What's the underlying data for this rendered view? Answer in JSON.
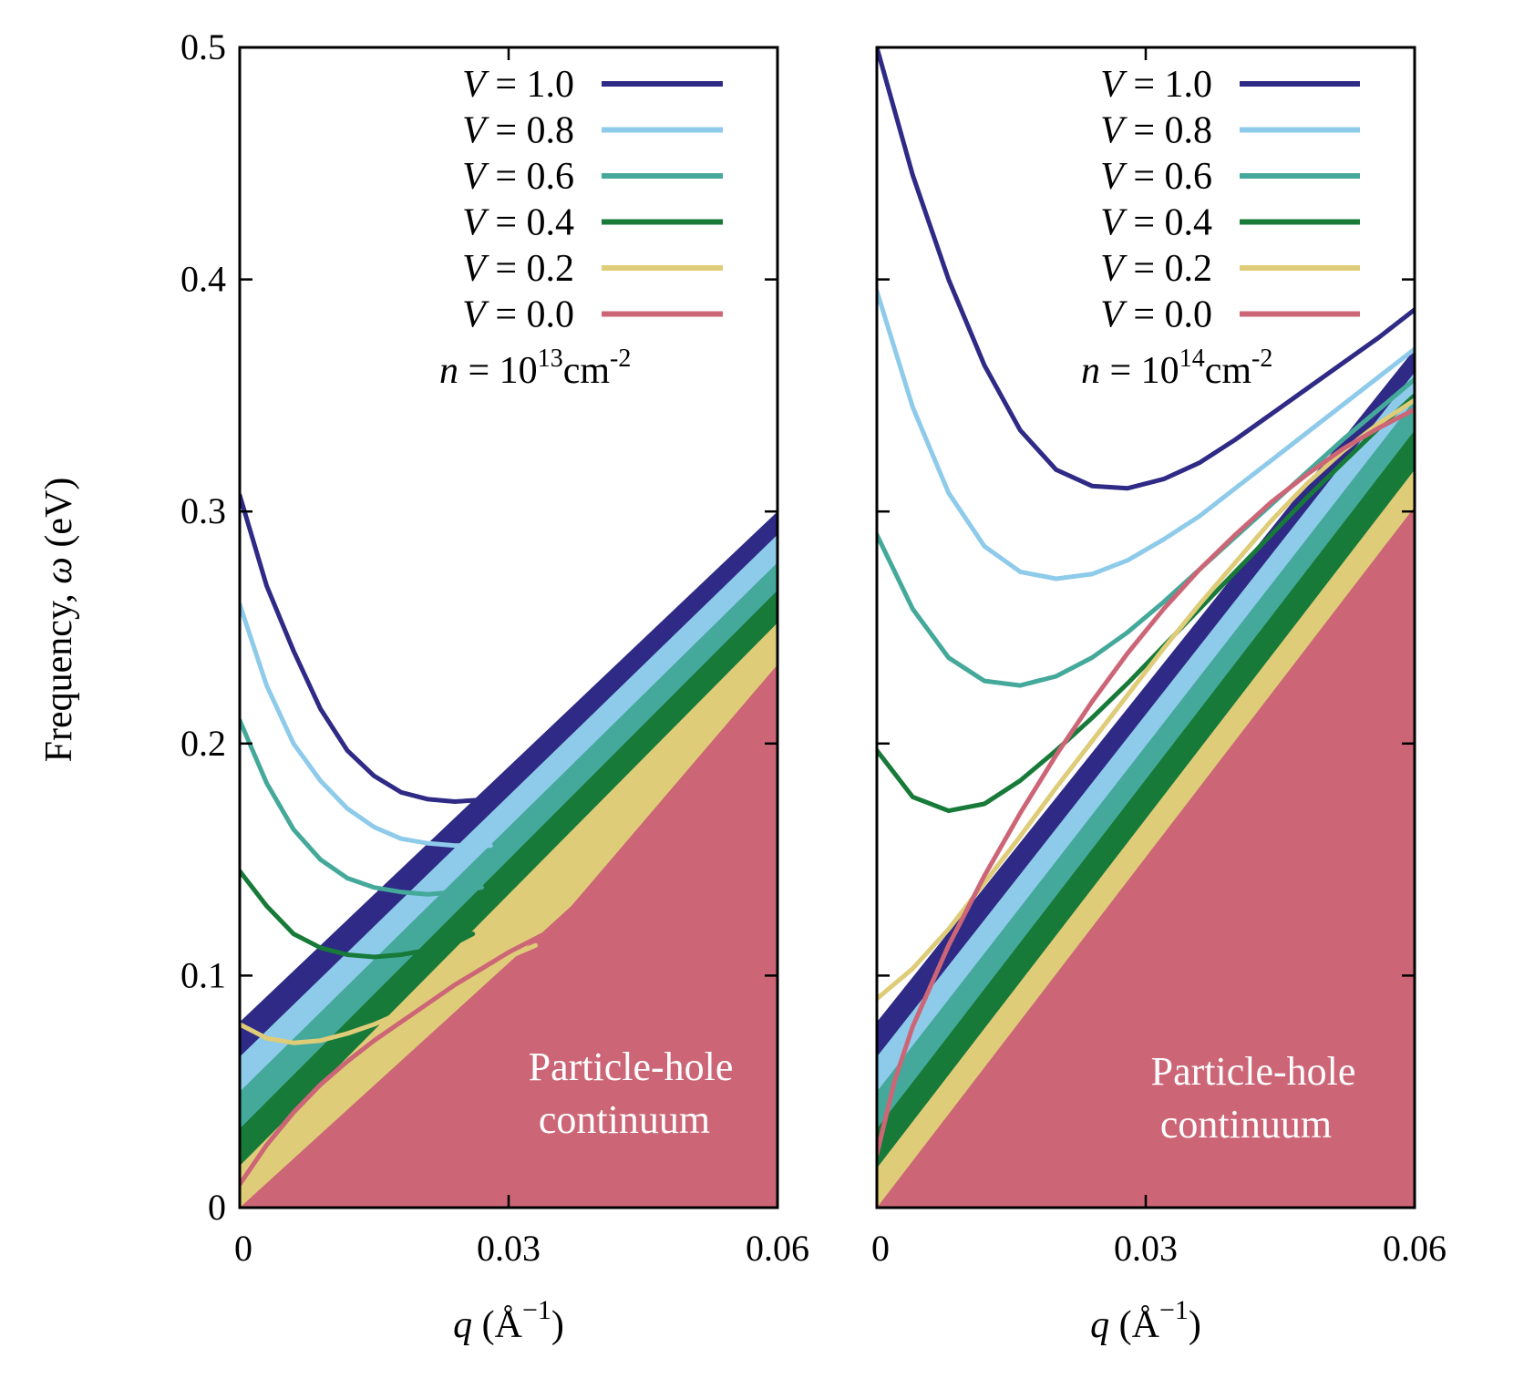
{
  "figure": {
    "ylabel_prefix": "Frequency, ",
    "ylabel_symbol": "ω",
    "ylabel_unit": " (eV)",
    "xlabel_symbol": "q",
    "xlabel_unit_open": " (",
    "xlabel_unit": "Å",
    "xlabel_exp": "−1",
    "xlabel_unit_close": ")",
    "continuum_label_line1": "Particle-hole",
    "continuum_label_line2": "continuum"
  },
  "colors": {
    "V=1.0": "#2e2a85",
    "V=0.8": "#8ecbea",
    "V=0.6": "#44a99a",
    "V=0.4": "#177a39",
    "V=0.2": "#dfcc78",
    "V=0.0": "#cc6677"
  },
  "chart_data": [
    {
      "type": "line",
      "panel": "left",
      "density_label": {
        "prefix": "n",
        "eq": " = 10",
        "exp": "13",
        "unit": "cm",
        "unit_exp": "-2"
      },
      "xlim": [
        0,
        0.06
      ],
      "ylim": [
        0,
        0.5
      ],
      "xticks": [
        "0",
        "0.03",
        "0.06"
      ],
      "yticks": [
        "0",
        "0.1",
        "0.2",
        "0.3",
        "0.4",
        "0.5"
      ],
      "legend_position": "top-right",
      "series": [
        {
          "name": "V = 1.0",
          "x": [
            0,
            0.003,
            0.006,
            0.009,
            0.012,
            0.015,
            0.018,
            0.021,
            0.024,
            0.028
          ],
          "y": [
            0.307,
            0.268,
            0.24,
            0.215,
            0.197,
            0.186,
            0.179,
            0.176,
            0.175,
            0.176
          ]
        },
        {
          "name": "V = 0.8",
          "x": [
            0,
            0.003,
            0.006,
            0.009,
            0.012,
            0.015,
            0.018,
            0.021,
            0.024,
            0.028
          ],
          "y": [
            0.26,
            0.225,
            0.2,
            0.184,
            0.172,
            0.164,
            0.159,
            0.157,
            0.156,
            0.156
          ]
        },
        {
          "name": "V = 0.6",
          "x": [
            0,
            0.003,
            0.006,
            0.009,
            0.012,
            0.015,
            0.018,
            0.021,
            0.024,
            0.027
          ],
          "y": [
            0.21,
            0.183,
            0.163,
            0.15,
            0.142,
            0.138,
            0.136,
            0.135,
            0.136,
            0.138
          ]
        },
        {
          "name": "V = 0.4",
          "x": [
            0,
            0.003,
            0.006,
            0.009,
            0.012,
            0.015,
            0.018,
            0.021,
            0.024,
            0.026
          ],
          "y": [
            0.145,
            0.13,
            0.118,
            0.112,
            0.109,
            0.108,
            0.109,
            0.111,
            0.114,
            0.118
          ]
        },
        {
          "name": "V = 0.2",
          "x": [
            0,
            0.003,
            0.006,
            0.009,
            0.012,
            0.015,
            0.018,
            0.021,
            0.024,
            0.027,
            0.03,
            0.033
          ],
          "y": [
            0.079,
            0.073,
            0.071,
            0.072,
            0.075,
            0.079,
            0.084,
            0.09,
            0.096,
            0.102,
            0.108,
            0.113
          ]
        },
        {
          "name": "V = 0.0",
          "x": [
            0,
            0.003,
            0.006,
            0.009,
            0.012,
            0.015,
            0.018,
            0.021,
            0.024,
            0.027,
            0.03,
            0.033,
            0.035
          ],
          "y": [
            0.01,
            0.027,
            0.041,
            0.053,
            0.063,
            0.072,
            0.08,
            0.088,
            0.096,
            0.103,
            0.11,
            0.116,
            0.12
          ]
        }
      ],
      "continuum_bands": [
        {
          "series": "V = 1.0",
          "x": [
            0,
            0.06
          ],
          "y": [
            0.08,
            0.3
          ]
        },
        {
          "series": "V = 0.8",
          "x": [
            0,
            0.06
          ],
          "y": [
            0.065,
            0.29
          ]
        },
        {
          "series": "V = 0.6",
          "x": [
            0,
            0.06
          ],
          "y": [
            0.05,
            0.278
          ]
        },
        {
          "series": "V = 0.4",
          "x": [
            0,
            0.06
          ],
          "y": [
            0.034,
            0.266
          ]
        },
        {
          "series": "V = 0.2",
          "x": [
            0,
            0.06
          ],
          "y": [
            0.018,
            0.252
          ]
        },
        {
          "series": "V = 0.0",
          "x": [
            0,
            0.037,
            0.06
          ],
          "y": [
            0,
            0.13,
            0.234
          ]
        }
      ]
    },
    {
      "type": "line",
      "panel": "right",
      "density_label": {
        "prefix": "n",
        "eq": " = 10",
        "exp": "14",
        "unit": "cm",
        "unit_exp": "-2"
      },
      "xlim": [
        0,
        0.06
      ],
      "ylim": [
        0,
        0.5
      ],
      "xticks": [
        "0",
        "0.03",
        "0.06"
      ],
      "yticks": [
        "0",
        "0.1",
        "0.2",
        "0.3",
        "0.4",
        "0.5"
      ],
      "legend_position": "top-right",
      "series": [
        {
          "name": "V = 1.0",
          "x": [
            0,
            0.004,
            0.008,
            0.012,
            0.016,
            0.02,
            0.024,
            0.028,
            0.032,
            0.036,
            0.04,
            0.044,
            0.048,
            0.052,
            0.056,
            0.06
          ],
          "y": [
            0.5,
            0.445,
            0.4,
            0.363,
            0.335,
            0.318,
            0.311,
            0.31,
            0.314,
            0.321,
            0.331,
            0.342,
            0.353,
            0.364,
            0.375,
            0.387
          ]
        },
        {
          "name": "V = 0.8",
          "x": [
            0,
            0.004,
            0.008,
            0.012,
            0.016,
            0.02,
            0.024,
            0.028,
            0.032,
            0.036,
            0.04,
            0.044,
            0.048,
            0.052,
            0.056,
            0.06
          ],
          "y": [
            0.395,
            0.345,
            0.308,
            0.285,
            0.274,
            0.271,
            0.273,
            0.279,
            0.288,
            0.298,
            0.31,
            0.322,
            0.334,
            0.346,
            0.358,
            0.37
          ]
        },
        {
          "name": "V = 0.6",
          "x": [
            0,
            0.004,
            0.008,
            0.012,
            0.016,
            0.02,
            0.024,
            0.028,
            0.032,
            0.036,
            0.04,
            0.044,
            0.048,
            0.052,
            0.056,
            0.06
          ],
          "y": [
            0.29,
            0.258,
            0.237,
            0.227,
            0.225,
            0.229,
            0.237,
            0.248,
            0.261,
            0.275,
            0.289,
            0.303,
            0.317,
            0.331,
            0.344,
            0.357
          ]
        },
        {
          "name": "V = 0.4",
          "x": [
            0,
            0.004,
            0.008,
            0.012,
            0.016,
            0.02,
            0.024,
            0.028,
            0.032,
            0.036,
            0.04,
            0.044,
            0.048,
            0.052,
            0.056,
            0.06
          ],
          "y": [
            0.197,
            0.177,
            0.171,
            0.174,
            0.184,
            0.197,
            0.211,
            0.226,
            0.242,
            0.258,
            0.274,
            0.29,
            0.306,
            0.321,
            0.336,
            0.35
          ]
        },
        {
          "name": "V = 0.2",
          "x": [
            0,
            0.004,
            0.008,
            0.012,
            0.016,
            0.02,
            0.024,
            0.028,
            0.032,
            0.036,
            0.04,
            0.044,
            0.048,
            0.052,
            0.056,
            0.06
          ],
          "y": [
            0.09,
            0.103,
            0.12,
            0.14,
            0.16,
            0.181,
            0.201,
            0.221,
            0.241,
            0.26,
            0.278,
            0.296,
            0.312,
            0.326,
            0.338,
            0.348
          ]
        },
        {
          "name": "V = 0.0",
          "x": [
            0,
            0.002,
            0.004,
            0.008,
            0.012,
            0.016,
            0.02,
            0.024,
            0.028,
            0.032,
            0.036,
            0.04,
            0.044,
            0.048,
            0.052,
            0.056,
            0.06
          ],
          "y": [
            0.023,
            0.055,
            0.078,
            0.113,
            0.143,
            0.17,
            0.195,
            0.218,
            0.239,
            0.258,
            0.275,
            0.29,
            0.304,
            0.316,
            0.327,
            0.336,
            0.344
          ]
        }
      ],
      "continuum_bands": [
        {
          "series": "V = 1.0",
          "x": [
            0,
            0.06
          ],
          "y": [
            0.08,
            0.37
          ]
        },
        {
          "series": "V = 0.8",
          "x": [
            0,
            0.06
          ],
          "y": [
            0.065,
            0.36
          ]
        },
        {
          "series": "V = 0.6",
          "x": [
            0,
            0.06
          ],
          "y": [
            0.05,
            0.348
          ]
        },
        {
          "series": "V = 0.4",
          "x": [
            0,
            0.06
          ],
          "y": [
            0.034,
            0.335
          ]
        },
        {
          "series": "V = 0.2",
          "x": [
            0,
            0.06
          ],
          "y": [
            0.017,
            0.318
          ]
        },
        {
          "series": "V = 0.0",
          "x": [
            0,
            0.06
          ],
          "y": [
            0,
            0.302
          ]
        }
      ]
    }
  ]
}
